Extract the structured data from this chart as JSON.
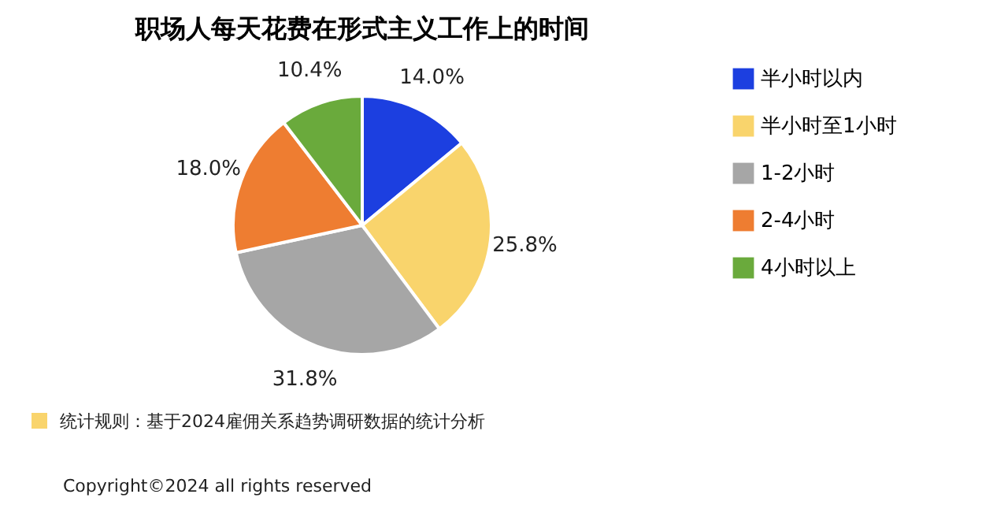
{
  "chart_data": {
    "type": "pie",
    "title": "职场人每天花费在形式主义工作上的时间",
    "categories": [
      "半小时以内",
      "半小时至1小时",
      "1-2小时",
      "2-4小时",
      "4小时以上"
    ],
    "values": [
      14.0,
      25.8,
      31.8,
      18.0,
      10.4
    ],
    "colors": [
      "#1c3fe0",
      "#f9d46c",
      "#a6a6a6",
      "#ee7d31",
      "#6aaa3c"
    ],
    "value_labels": [
      "14.0%",
      "25.8%",
      "31.8%",
      "18.0%",
      "10.4%"
    ],
    "legend": "right",
    "annotations": [
      "统计规则：基于2024雇佣关系趋势调研数据的统计分析",
      "Copyright©2024 all rights reserved"
    ]
  }
}
